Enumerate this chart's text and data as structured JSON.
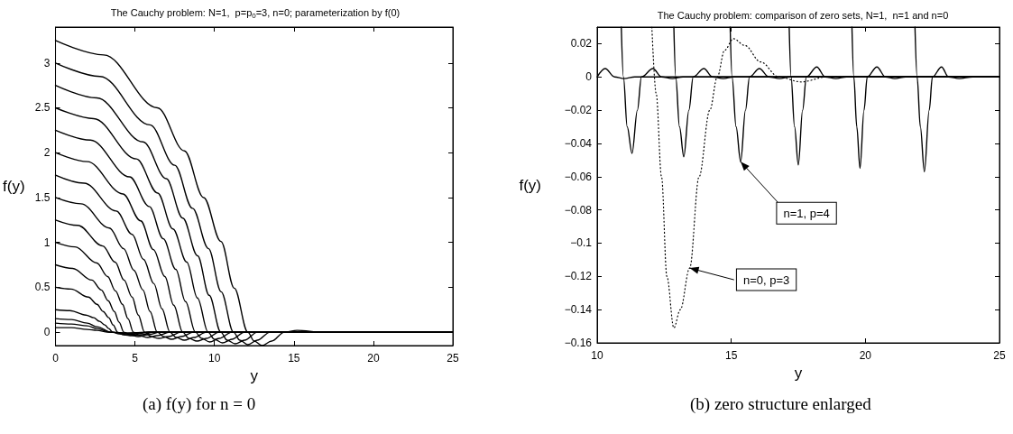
{
  "chart_data": [
    {
      "type": "line",
      "title": "The Cauchy problem: N=1,  p=p$_{0}$=3, n=0; parameterization by f(0)",
      "xlabel": "y",
      "ylabel": "f(y)",
      "xlim": [
        0,
        25
      ],
      "ylim": [
        -0.15,
        3.4
      ],
      "xticks": [
        0,
        5,
        10,
        15,
        20,
        25
      ],
      "yticks": [
        0,
        0.5,
        1,
        1.5,
        2,
        2.5,
        3
      ],
      "grid": false,
      "marker": "none",
      "line_style": "solid",
      "annotations": [
        "(a) f(y) for n = 0"
      ],
      "series": [
        {
          "color": "#000000",
          "x": [
            0,
            3.03,
            6.41,
            8.11,
            9.32,
            10.41,
            11.25,
            12.1,
            12.5,
            13.0,
            13.6,
            14.4,
            15.2,
            16.8,
            25
          ],
          "values": [
            3.25,
            3.09,
            2.5,
            2.02,
            1.5,
            1.01,
            0.49,
            0,
            -0.1,
            -0.15,
            -0.1,
            0,
            0.02,
            0,
            0
          ]
        },
        {
          "color": "#000000",
          "x": [
            0,
            2.8,
            5.94,
            7.5,
            8.62,
            9.63,
            10.42,
            11.2,
            11.6,
            12.1,
            12.7,
            13.5,
            25
          ],
          "values": [
            3,
            2.85,
            2.31,
            1.86,
            1.38,
            0.93,
            0.45,
            0,
            -0.09,
            -0.14,
            -0.09,
            0,
            0
          ]
        },
        {
          "color": "#000000",
          "x": [
            0,
            2.6,
            5.51,
            6.97,
            8.01,
            8.94,
            9.67,
            10.4,
            10.8,
            11.3,
            11.9,
            12.7,
            25
          ],
          "values": [
            2.75,
            2.61,
            2.12,
            1.71,
            1.27,
            0.85,
            0.41,
            0,
            -0.09,
            -0.13,
            -0.09,
            0,
            0
          ]
        },
        {
          "color": "#000000",
          "x": [
            0,
            2.4,
            5.09,
            6.43,
            7.39,
            8.26,
            8.93,
            9.6,
            10.0,
            10.5,
            11.1,
            11.9,
            25
          ],
          "values": [
            2.5,
            2.38,
            1.93,
            1.55,
            1.15,
            0.78,
            0.38,
            0,
            -0.08,
            -0.12,
            -0.08,
            0,
            0
          ]
        },
        {
          "color": "#000000",
          "x": [
            0,
            2.2,
            4.66,
            5.9,
            6.78,
            7.57,
            8.18,
            8.8,
            9.2,
            9.7,
            10.3,
            11.1,
            25
          ],
          "values": [
            2.25,
            2.14,
            1.73,
            1.4,
            1.04,
            0.7,
            0.34,
            0,
            -0.07,
            -0.11,
            -0.07,
            0,
            0
          ]
        },
        {
          "color": "#000000",
          "x": [
            0,
            2,
            4.24,
            5.36,
            6.16,
            6.88,
            7.44,
            8,
            8.4,
            8.9,
            9.5,
            10.3,
            25
          ],
          "values": [
            2,
            1.9,
            1.54,
            1.24,
            0.92,
            0.62,
            0.3,
            0,
            -0.07,
            -0.1,
            -0.07,
            0,
            0
          ]
        },
        {
          "color": "#000000",
          "x": [
            0,
            1.8,
            3.82,
            4.82,
            5.54,
            6.19,
            6.7,
            7.2,
            7.6,
            8.1,
            8.7,
            9.5,
            25
          ],
          "values": [
            1.75,
            1.66,
            1.35,
            1.09,
            0.81,
            0.54,
            0.26,
            0,
            -0.06,
            -0.09,
            -0.06,
            0,
            0
          ]
        },
        {
          "color": "#000000",
          "x": [
            0,
            1.6,
            3.39,
            4.29,
            4.93,
            5.5,
            5.95,
            6.4,
            6.8,
            7.3,
            7.9,
            8.7,
            25
          ],
          "values": [
            1.5,
            1.43,
            1.16,
            0.93,
            0.69,
            0.47,
            0.23,
            0,
            -0.05,
            -0.08,
            -0.05,
            0,
            0
          ]
        },
        {
          "color": "#000000",
          "x": [
            0,
            1.4,
            2.97,
            3.75,
            4.31,
            4.82,
            5.21,
            5.6,
            6.0,
            6.5,
            7.1,
            7.9,
            25
          ],
          "values": [
            1.25,
            1.19,
            0.96,
            0.78,
            0.58,
            0.39,
            0.19,
            0,
            -0.05,
            -0.07,
            -0.05,
            0,
            0
          ]
        },
        {
          "color": "#000000",
          "x": [
            0,
            1.23,
            2.6,
            3.28,
            3.77,
            4.21,
            4.56,
            4.9,
            5.3,
            5.8,
            6.4,
            7.2,
            25
          ],
          "values": [
            1,
            0.95,
            0.77,
            0.62,
            0.46,
            0.31,
            0.15,
            0,
            -0.04,
            -0.06,
            -0.04,
            0,
            0
          ]
        },
        {
          "color": "#000000",
          "x": [
            0,
            1.08,
            2.28,
            2.88,
            3.31,
            3.7,
            4.0,
            4.3,
            4.7,
            5.2,
            5.8,
            6.6,
            25
          ],
          "values": [
            0.75,
            0.71,
            0.58,
            0.47,
            0.35,
            0.23,
            0.11,
            0,
            -0.03,
            -0.05,
            -0.03,
            0,
            0
          ]
        },
        {
          "color": "#000000",
          "x": [
            0,
            0.98,
            2.07,
            2.61,
            3.0,
            3.35,
            3.63,
            3.9,
            4.3,
            4.8,
            5.4,
            6.2,
            25
          ],
          "values": [
            0.5,
            0.48,
            0.39,
            0.31,
            0.23,
            0.16,
            0.08,
            0,
            -0.03,
            -0.04,
            -0.03,
            0,
            0
          ]
        },
        {
          "color": "#000000",
          "x": [
            0,
            0.9,
            1.91,
            2.41,
            2.77,
            3.1,
            3.35,
            3.6,
            4.0,
            4.5,
            5.1,
            5.9,
            25
          ],
          "values": [
            0.25,
            0.24,
            0.19,
            0.16,
            0.12,
            0.08,
            0.04,
            0,
            -0.02,
            -0.03,
            -0.02,
            0,
            0
          ]
        },
        {
          "color": "#000000",
          "x": [
            0,
            1,
            2,
            2.6,
            3.5,
            4.6,
            6.0,
            25
          ],
          "values": [
            0.15,
            0.14,
            0.1,
            0.06,
            0,
            -0.02,
            0,
            0
          ]
        },
        {
          "color": "#000000",
          "x": [
            0,
            1,
            2,
            2.6,
            3.4,
            4.5,
            5.9,
            25
          ],
          "values": [
            0.1,
            0.09,
            0.07,
            0.04,
            0,
            -0.01,
            0,
            0
          ]
        },
        {
          "color": "#000000",
          "x": [
            0,
            1,
            2,
            2.6,
            3.3,
            4.4,
            5.8,
            25
          ],
          "values": [
            0.05,
            0.05,
            0.03,
            0.02,
            0,
            -0.01,
            0,
            0
          ]
        }
      ]
    },
    {
      "type": "line",
      "title": "The Cauchy problem: comparison of zero sets, N=1,  n=1 and n=0",
      "xlabel": "y",
      "ylabel": "f(y)",
      "xlim": [
        10,
        25
      ],
      "ylim": [
        -0.16,
        0.03
      ],
      "xticks": [
        10,
        15,
        20,
        25
      ],
      "yticks": [
        {
          "value": -0.16,
          "label": "−0.16"
        },
        {
          "value": -0.14,
          "label": "−0.14"
        },
        {
          "value": -0.12,
          "label": "−0.12"
        },
        {
          "value": -0.1,
          "label": "−0.1"
        },
        {
          "value": -0.08,
          "label": "−0.08"
        },
        {
          "value": -0.06,
          "label": "−0.06"
        },
        {
          "value": -0.04,
          "label": "−0.04"
        },
        {
          "value": -0.02,
          "label": "−0.02"
        },
        0,
        0.02
      ],
      "grid": false,
      "marker": "none",
      "line_style": "solid",
      "annotations": [
        "(b) zero structure enlarged",
        {
          "text": "n=1, p=4",
          "x": 15.35,
          "y": -0.051
        },
        {
          "text": "n=0, p=3",
          "x": 13.45,
          "y": -0.115
        }
      ],
      "series": [
        {
          "color": "#000000",
          "x": [
            10,
            10.3,
            10.65,
            11,
            11.4,
            25
          ],
          "values": [
            0,
            0.005,
            0,
            -0.001,
            0,
            0
          ]
        },
        {
          "color": "#000000",
          "x": [
            10.9,
            10.98,
            11.12,
            11.3,
            11.5,
            11.65,
            12.08,
            12.4,
            12.8,
            13.2,
            25
          ],
          "values": [
            0.03,
            0,
            -0.03,
            -0.046,
            -0.02,
            0,
            0.005,
            0,
            -0.001,
            0,
            0
          ]
        },
        {
          "color": "#000000",
          "x": [
            12.86,
            12.93,
            13.07,
            13.23,
            13.42,
            13.58,
            13.98,
            14.3,
            14.7,
            15.1,
            25
          ],
          "values": [
            0.03,
            0,
            -0.03,
            -0.048,
            -0.02,
            0,
            0.005,
            0,
            -0.001,
            0,
            0
          ]
        },
        {
          "color": "#000000",
          "x": [
            14.96,
            15.03,
            15.18,
            15.35,
            15.53,
            15.68,
            16.05,
            16.4,
            16.8,
            17.2,
            25
          ],
          "values": [
            0.03,
            0,
            -0.03,
            -0.051,
            -0.02,
            0,
            0.005,
            0,
            -0.001,
            0,
            0
          ]
        },
        {
          "color": "#000000",
          "x": [
            17.16,
            17.23,
            17.36,
            17.5,
            17.66,
            17.8,
            18.19,
            18.5,
            18.9,
            19.3,
            25
          ],
          "values": [
            0.03,
            0,
            -0.03,
            -0.053,
            -0.02,
            0,
            0.006,
            0,
            -0.001,
            0,
            0
          ]
        },
        {
          "color": "#000000",
          "x": [
            19.5,
            19.57,
            19.68,
            19.8,
            19.95,
            20.07,
            20.43,
            20.75,
            21.1,
            21.5,
            25
          ],
          "values": [
            0.03,
            0,
            -0.03,
            -0.055,
            -0.02,
            0,
            0.006,
            0,
            -0.001,
            0,
            0
          ]
        },
        {
          "color": "#000000",
          "x": [
            21.85,
            21.93,
            22.05,
            22.2,
            22.38,
            22.5,
            22.84,
            23.1,
            23.5,
            24,
            25
          ],
          "values": [
            0.03,
            0,
            -0.03,
            -0.057,
            -0.02,
            0,
            0.006,
            0,
            -0.001,
            0,
            0
          ]
        },
        {
          "color": "#000000",
          "line_style": "dotted",
          "x": [
            12.04,
            12.2,
            12.4,
            12.6,
            12.86,
            13.1,
            13.45,
            13.8,
            14.2,
            14.48,
            14.75,
            15.08,
            15.5,
            16.1,
            16.77,
            17.6,
            18.57,
            20
          ],
          "values": [
            0.03,
            -0.01,
            -0.06,
            -0.12,
            -0.151,
            -0.14,
            -0.115,
            -0.06,
            -0.02,
            0,
            0.016,
            0.023,
            0.019,
            0.009,
            0,
            -0.003,
            0,
            0
          ]
        }
      ]
    }
  ]
}
